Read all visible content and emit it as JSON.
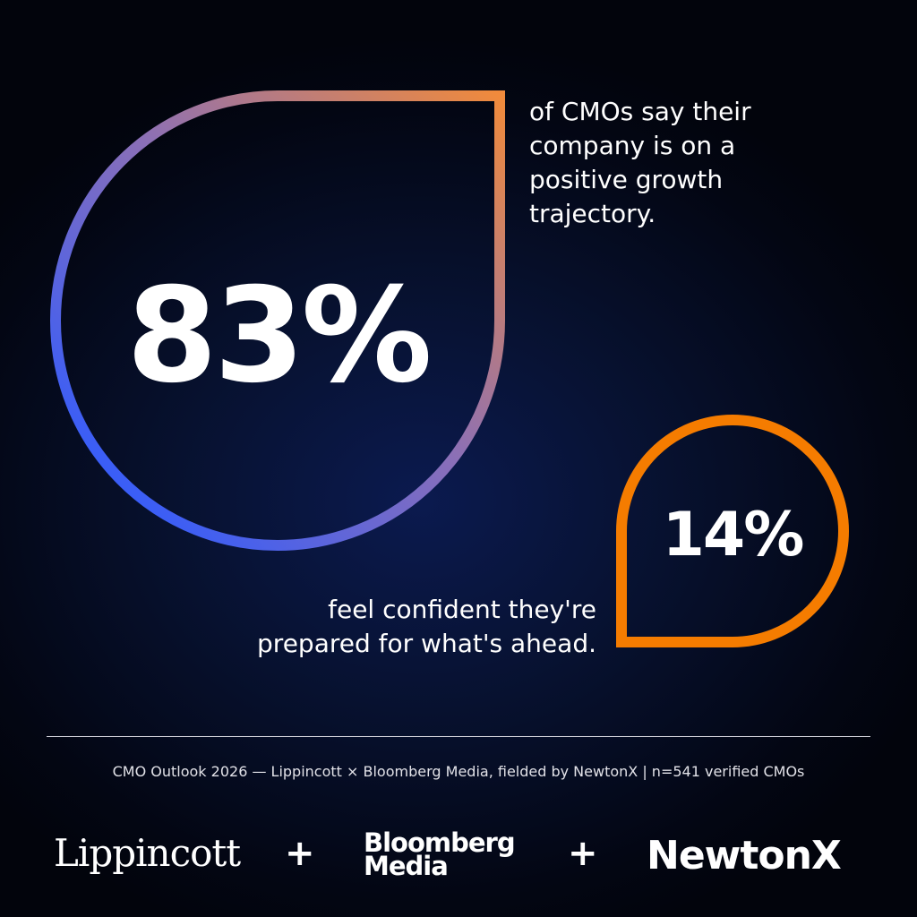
{
  "colors": {
    "gradient_start": "#2f5bff",
    "gradient_mid": "#8a6fb8",
    "gradient_end": "#f08a3c",
    "accent_orange": "#f57c00"
  },
  "stat_primary": {
    "value": "83%",
    "caption_lines": [
      "of CMOs say their",
      "company is on a",
      "positive growth",
      "trajectory."
    ]
  },
  "stat_secondary": {
    "value": "14%",
    "caption_lines": [
      "feel confident they're",
      "prepared for what's ahead."
    ]
  },
  "footer": {
    "source": "CMO Outlook 2026 — Lippincott × Bloomberg Media, fielded by NewtonX | n=541 verified CMOs"
  },
  "logos": {
    "lippincott": "Lippincott",
    "plus": "+",
    "bloomberg_line1": "Bloomberg",
    "bloomberg_line2": "Media",
    "newtonx": "NewtonX"
  }
}
